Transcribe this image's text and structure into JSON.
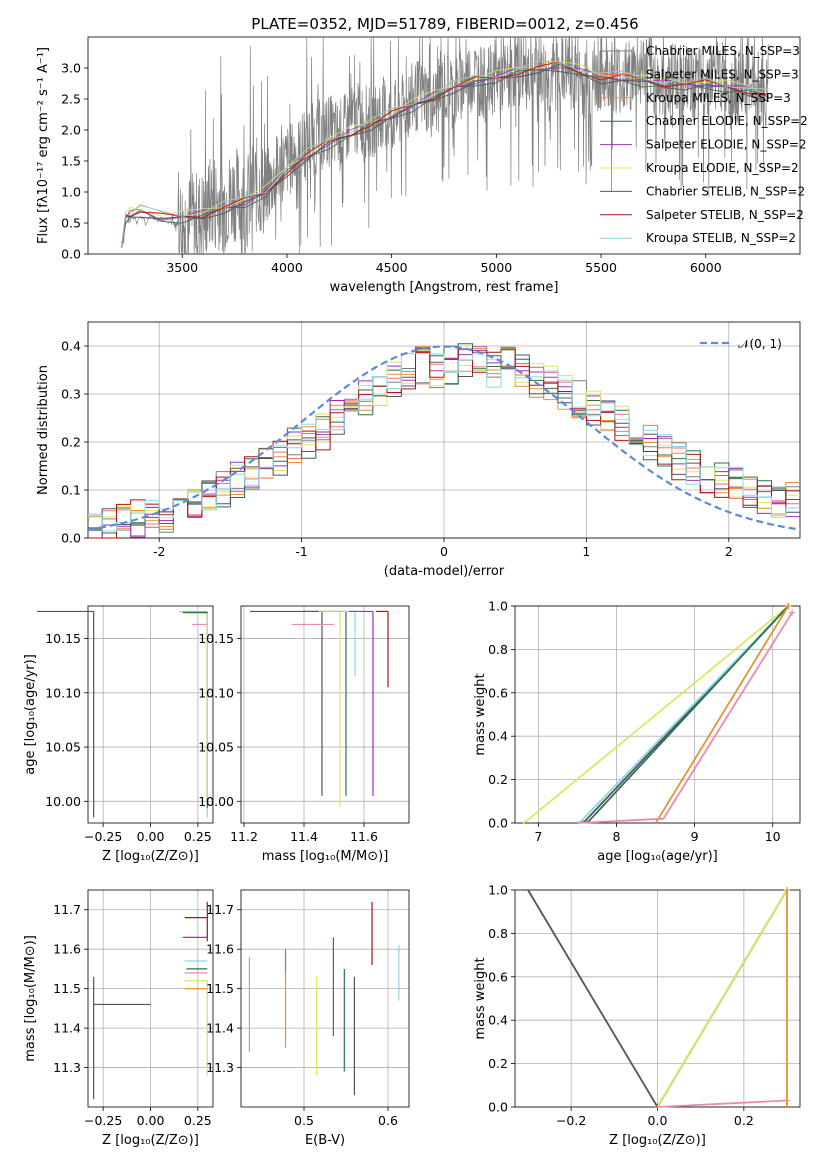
{
  "figure": {
    "title": "PLATE=0352, MJD=51789, FIBERID=0012, z=0.456"
  },
  "chart_data": [
    {
      "id": "spectrum",
      "type": "line",
      "xlabel": "wavelength [Angstrom, rest frame]",
      "ylabel": "Flux [fλ10⁻¹⁷ erg cm⁻² s⁻¹ A⁻¹]",
      "xlim": [
        3050,
        6450
      ],
      "ylim": [
        0,
        3.5
      ],
      "xticks": [
        3500,
        4000,
        4500,
        5000,
        5500,
        6000
      ],
      "yticks": [
        0.0,
        0.5,
        1.0,
        1.5,
        2.0,
        2.5,
        3.0
      ],
      "grid": false,
      "legend_position": "top-right",
      "observed": {
        "color": "#808080",
        "x": [
          3210,
          3230,
          3250,
          3300,
          3350,
          3400,
          3450,
          3500,
          3550,
          3600,
          3650,
          3700,
          3750,
          3800,
          3850,
          3900,
          3950,
          4000,
          4050,
          4100,
          4150,
          4200,
          4250,
          4300,
          4350,
          4400,
          4450,
          4500,
          4550,
          4600,
          4650,
          4700,
          4750,
          4800,
          4850,
          4900,
          4950,
          5000,
          5050,
          5100,
          5150,
          5200,
          5250,
          5300,
          5350,
          5400,
          5450,
          5500,
          5550,
          5600,
          5650,
          5700,
          5750,
          5800,
          5850,
          5900,
          5950,
          6000,
          6050,
          6100,
          6150,
          6200,
          6250,
          6300
        ],
        "y": [
          0.1,
          0.5,
          0.55,
          0.6,
          0.6,
          0.55,
          0.5,
          0.5,
          0.55,
          0.6,
          0.9,
          0.8,
          1.0,
          0.8,
          1.1,
          1.0,
          1.3,
          1.5,
          1.6,
          1.8,
          1.9,
          2.0,
          1.9,
          2.1,
          2.2,
          2.1,
          2.3,
          2.2,
          2.3,
          2.5,
          2.6,
          2.4,
          2.7,
          2.6,
          2.8,
          2.9,
          2.7,
          2.9,
          2.8,
          3.0,
          2.9,
          3.0,
          2.8,
          2.9,
          3.0,
          2.8,
          2.7,
          2.9,
          2.9,
          2.8,
          2.9,
          3.0,
          2.8,
          2.7,
          2.9,
          2.8,
          2.7,
          2.8,
          2.9,
          2.8,
          2.7,
          2.8,
          2.7,
          2.6
        ]
      },
      "series": [
        {
          "name": "Chabrier MILES, N_SSP=3",
          "color": "#7f7f7f"
        },
        {
          "name": "Salpeter MILES, N_SSP=3",
          "color": "#f07070"
        },
        {
          "name": "Kroupa MILES, N_SSP=3",
          "color": "#e8922e"
        },
        {
          "name": "Chabrier ELODIE, N_SSP=2",
          "color": "#2f6f4f"
        },
        {
          "name": "Salpeter ELODIE, N_SSP=2",
          "color": "#9b30c0"
        },
        {
          "name": "Kroupa ELODIE, N_SSP=2",
          "color": "#d8e860"
        },
        {
          "name": "Chabrier STELIB, N_SSP=2",
          "color": "#555555"
        },
        {
          "name": "Salpeter STELIB, N_SSP=2",
          "color": "#b01010"
        },
        {
          "name": "Kroupa STELIB, N_SSP=2",
          "color": "#88d8e8"
        }
      ],
      "model": {
        "x": [
          3210,
          3230,
          3250,
          3300,
          3400,
          3500,
          3600,
          3700,
          3800,
          3900,
          4000,
          4100,
          4200,
          4300,
          4400,
          4500,
          4600,
          4700,
          4800,
          4900,
          5000,
          5100,
          5200,
          5300,
          5400,
          5500,
          5600,
          5700,
          5800,
          5900,
          6000,
          6100,
          6200,
          6300
        ],
        "y": [
          0.1,
          0.6,
          0.65,
          0.7,
          0.6,
          0.6,
          0.65,
          0.75,
          0.85,
          1.0,
          1.35,
          1.6,
          1.8,
          1.95,
          2.1,
          2.25,
          2.4,
          2.55,
          2.7,
          2.8,
          2.85,
          2.95,
          3.0,
          3.05,
          2.95,
          2.85,
          2.85,
          2.8,
          2.75,
          2.75,
          2.75,
          2.7,
          2.65,
          2.55
        ]
      }
    },
    {
      "id": "residuals",
      "type": "line",
      "xlabel": "(data-model)/error",
      "ylabel": "Normed distribution",
      "xlim": [
        -2.5,
        2.5
      ],
      "ylim": [
        0,
        0.45
      ],
      "xticks": [
        -2,
        -1,
        0,
        1,
        2
      ],
      "yticks": [
        0.0,
        0.1,
        0.2,
        0.3,
        0.4
      ],
      "grid": true,
      "legend_position": "top-right",
      "reference": {
        "name": "𝒩(0, 1)",
        "mean": 0,
        "sigma": 1,
        "color": "#5b8bd8"
      },
      "histogram": {
        "bins_x": [
          -2.5,
          -2.4,
          -2.3,
          -2.2,
          -2.1,
          -2.0,
          -1.9,
          -1.8,
          -1.7,
          -1.6,
          -1.5,
          -1.4,
          -1.3,
          -1.2,
          -1.1,
          -1.0,
          -0.9,
          -0.8,
          -0.7,
          -0.6,
          -0.5,
          -0.4,
          -0.3,
          -0.2,
          -0.1,
          0.0,
          0.1,
          0.2,
          0.3,
          0.4,
          0.5,
          0.6,
          0.7,
          0.8,
          0.9,
          1.0,
          1.1,
          1.2,
          1.3,
          1.4,
          1.5,
          1.6,
          1.7,
          1.8,
          1.9,
          2.0,
          2.1,
          2.2,
          2.3,
          2.4
        ],
        "heights": [
          0.02,
          0.03,
          0.04,
          0.04,
          0.05,
          0.05,
          0.06,
          0.07,
          0.09,
          0.1,
          0.12,
          0.13,
          0.15,
          0.17,
          0.19,
          0.2,
          0.22,
          0.25,
          0.27,
          0.29,
          0.31,
          0.33,
          0.35,
          0.36,
          0.35,
          0.36,
          0.37,
          0.36,
          0.35,
          0.36,
          0.35,
          0.33,
          0.32,
          0.3,
          0.29,
          0.27,
          0.25,
          0.24,
          0.22,
          0.2,
          0.18,
          0.16,
          0.15,
          0.13,
          0.12,
          0.11,
          0.1,
          0.09,
          0.08,
          0.08
        ]
      }
    },
    {
      "id": "age_vs_Z",
      "type": "scatter",
      "xlabel": "Z [log₁₀(Z/Z⊙)]",
      "ylabel": "age  [log₁₀(age/yr)]",
      "xlim": [
        -0.33,
        0.33
      ],
      "ylim": [
        9.98,
        10.18
      ],
      "xticks": [
        -0.25,
        0.0,
        0.25
      ],
      "xtick_labels": [
        "−0.25",
        "0.00",
        "0.25"
      ],
      "yticks": [
        10.0,
        10.05,
        10.1,
        10.15
      ],
      "ytick_labels": [
        "10.00",
        "10.05",
        "10.10",
        "10.15"
      ],
      "grid": true,
      "points": [
        {
          "x": -0.3,
          "y": 10.175,
          "xerr": [
            0.3,
            0.0
          ],
          "yerr": [
            0.19,
            0.0
          ],
          "color": "#555555"
        },
        {
          "x": 0.3,
          "y": 10.175,
          "xerr": [
            0.15,
            0.0
          ],
          "yerr": [
            0.19,
            0.0
          ],
          "color": "#88d8e8"
        },
        {
          "x": 0.3,
          "y": 10.174,
          "xerr": [
            0.13,
            0.0
          ],
          "yerr": [
            0.18,
            0.0
          ],
          "color": "#2f6f4f"
        },
        {
          "x": 0.3,
          "y": 10.173,
          "xerr": [
            0.12,
            0.0
          ],
          "yerr": [
            0.17,
            0.0
          ],
          "color": "#d8e860"
        },
        {
          "x": 0.3,
          "y": 10.163,
          "xerr": [
            0.08,
            0.0
          ],
          "yerr": [
            0.0,
            0.0
          ],
          "color": "#e88ab8"
        }
      ]
    },
    {
      "id": "age_vs_mass",
      "type": "scatter",
      "xlabel": "mass [log₁₀(M/M⊙)]",
      "ylabel": "",
      "xlim": [
        11.19,
        11.75
      ],
      "ylim": [
        9.98,
        10.18
      ],
      "xticks": [
        11.2,
        11.4,
        11.6
      ],
      "xtick_labels": [
        "11.2",
        "11.4",
        "11.6"
      ],
      "yticks": [
        10.0,
        10.05,
        10.1,
        10.15
      ],
      "ytick_labels": [
        "10.00",
        "10.05",
        "10.10",
        "10.15"
      ],
      "grid": true,
      "points": [
        {
          "x": 11.46,
          "y": 10.175,
          "xerr": [
            0.24,
            0.0
          ],
          "yerr": [
            0.17,
            0.0
          ],
          "color": "#555555"
        },
        {
          "x": 11.52,
          "y": 10.175,
          "xerr": [
            0.1,
            0.0
          ],
          "yerr": [
            0.18,
            0.0
          ],
          "color": "#d8e860"
        },
        {
          "x": 11.54,
          "y": 10.175,
          "xerr": [
            0.14,
            0.0
          ],
          "yerr": [
            0.17,
            0.0
          ],
          "color": "#2f6f4f"
        },
        {
          "x": 11.57,
          "y": 10.175,
          "xerr": [
            0.12,
            0.0
          ],
          "yerr": [
            0.06,
            0.0
          ],
          "color": "#88d8e8"
        },
        {
          "x": 11.63,
          "y": 10.175,
          "xerr": [
            0.08,
            0.0
          ],
          "yerr": [
            0.17,
            0.0
          ],
          "color": "#9b30c0"
        },
        {
          "x": 11.68,
          "y": 10.175,
          "xerr": [
            0.04,
            0.0
          ],
          "yerr": [
            0.07,
            0.0
          ],
          "color": "#b01010"
        },
        {
          "x": 11.5,
          "y": 10.163,
          "xerr": [
            0.14,
            0.0
          ],
          "yerr": [
            0.0,
            0.0
          ],
          "color": "#e88ab8"
        }
      ]
    },
    {
      "id": "cumulative_mass_age",
      "type": "line",
      "xlabel": "age  [log₁₀(age/yr)]",
      "ylabel": "mass weight",
      "xlim": [
        6.7,
        10.35
      ],
      "ylim": [
        0,
        1
      ],
      "xticks": [
        7,
        8,
        9,
        10
      ],
      "yticks": [
        0.0,
        0.2,
        0.4,
        0.6,
        0.8,
        1.0
      ],
      "grid": true,
      "series": [
        {
          "name": "Kroupa ELODIE",
          "color": "#d8e860",
          "x": [
            6.8,
            6.85,
            10.2
          ],
          "y": [
            0,
            0.01,
            1.0
          ]
        },
        {
          "name": "Chabrier STELIB",
          "color": "#555555",
          "x": [
            7.55,
            7.6,
            10.2
          ],
          "y": [
            0,
            0.01,
            1.0
          ]
        },
        {
          "name": "Kroupa STELIB",
          "color": "#88d8e8",
          "x": [
            7.5,
            7.55,
            10.2
          ],
          "y": [
            0,
            0.01,
            1.0
          ]
        },
        {
          "name": "Chabrier ELODIE",
          "color": "#2f6f4f",
          "x": [
            7.6,
            7.65,
            10.2
          ],
          "y": [
            0,
            0.01,
            1.0
          ]
        },
        {
          "name": "Kroupa MILES",
          "color": "#e8922e",
          "x": [
            8.5,
            8.52,
            10.2
          ],
          "y": [
            0,
            0.01,
            1.0
          ]
        },
        {
          "name": "Salpeter MILES",
          "color": "#e88ab8",
          "x": [
            7.5,
            8.6,
            10.25
          ],
          "y": [
            0,
            0.02,
            0.97
          ]
        }
      ]
    },
    {
      "id": "mass_vs_Z",
      "type": "scatter",
      "xlabel": "Z [log₁₀(Z/Z⊙)]",
      "ylabel": "mass [log₁₀(M/M⊙)]",
      "xlim": [
        -0.33,
        0.33
      ],
      "ylim": [
        11.2,
        11.75
      ],
      "xticks": [
        -0.25,
        0.0,
        0.25
      ],
      "xtick_labels": [
        "−0.25",
        "0.00",
        "0.25"
      ],
      "yticks": [
        11.3,
        11.4,
        11.5,
        11.6,
        11.7
      ],
      "ytick_labels": [
        "11.3",
        "11.4",
        "11.5",
        "11.6",
        "11.7"
      ],
      "grid": true,
      "points": [
        {
          "x": -0.3,
          "y": 11.46,
          "xerr": [
            0.0,
            0.3
          ],
          "yerr": [
            0.24,
            0.07
          ],
          "color": "#555555"
        },
        {
          "x": 0.3,
          "y": 11.68,
          "xerr": [
            0.12,
            0.0
          ],
          "yerr": [
            0.06,
            0.04
          ],
          "color": "#b01010"
        },
        {
          "x": 0.3,
          "y": 11.63,
          "xerr": [
            0.13,
            0.0
          ],
          "yerr": [
            0.0,
            0.0
          ],
          "color": "#9b30c0"
        },
        {
          "x": 0.3,
          "y": 11.57,
          "xerr": [
            0.12,
            0.0
          ],
          "yerr": [
            0.0,
            0.0
          ],
          "color": "#88d8e8"
        },
        {
          "x": 0.3,
          "y": 11.55,
          "xerr": [
            0.11,
            0.0
          ],
          "yerr": [
            0.0,
            0.0
          ],
          "color": "#2f6f4f"
        },
        {
          "x": 0.3,
          "y": 11.54,
          "xerr": [
            0.12,
            0.0
          ],
          "yerr": [
            0.0,
            0.0
          ],
          "color": "#e88ab8"
        },
        {
          "x": 0.3,
          "y": 11.52,
          "xerr": [
            0.12,
            0.0
          ],
          "yerr": [
            0.24,
            0.0
          ],
          "color": "#d8e860"
        },
        {
          "x": 0.3,
          "y": 11.5,
          "xerr": [
            0.12,
            0.0
          ],
          "yerr": [
            0.0,
            0.0
          ],
          "color": "#e8922e"
        }
      ]
    },
    {
      "id": "mass_vs_EBV",
      "type": "scatter",
      "xlabel": "E(B-V)",
      "ylabel": "",
      "xlim": [
        0.425,
        0.625
      ],
      "ylim": [
        11.2,
        11.75
      ],
      "xticks": [
        0.5,
        0.6
      ],
      "xtick_labels": [
        "0.5",
        "0.6"
      ],
      "yticks": [
        11.3,
        11.4,
        11.5,
        11.6,
        11.7
      ],
      "ytick_labels": [
        "11.3",
        "11.4",
        "11.5",
        "11.6",
        "11.7"
      ],
      "grid": true,
      "points": [
        {
          "x": 0.435,
          "y": 11.46,
          "xerr": [
            0,
            0
          ],
          "yerr": [
            0.12,
            0.12
          ],
          "color": "#e88ab8"
        },
        {
          "x": 0.478,
          "y": 11.47,
          "xerr": [
            0,
            0
          ],
          "yerr": [
            0.12,
            0.12
          ],
          "color": "#e8922e"
        },
        {
          "x": 0.478,
          "y": 11.56,
          "xerr": [
            0,
            0
          ],
          "yerr": [
            0.02,
            0.04
          ],
          "color": "#5b8bd8"
        },
        {
          "x": 0.515,
          "y": 11.4,
          "xerr": [
            0,
            0
          ],
          "yerr": [
            0.12,
            0.13
          ],
          "color": "#d8e860"
        },
        {
          "x": 0.535,
          "y": 11.51,
          "xerr": [
            0,
            0
          ],
          "yerr": [
            0.13,
            0.12
          ],
          "color": "#9b30c0"
        },
        {
          "x": 0.548,
          "y": 11.42,
          "xerr": [
            0,
            0
          ],
          "yerr": [
            0.13,
            0.13
          ],
          "color": "#2f6f4f"
        },
        {
          "x": 0.56,
          "y": 11.37,
          "xerr": [
            0,
            0
          ],
          "yerr": [
            0.14,
            0.16
          ],
          "color": "#555555"
        },
        {
          "x": 0.581,
          "y": 11.64,
          "xerr": [
            0,
            0
          ],
          "yerr": [
            0.08,
            0.08
          ],
          "color": "#b01010"
        },
        {
          "x": 0.613,
          "y": 11.54,
          "xerr": [
            0,
            0
          ],
          "yerr": [
            0.07,
            0.07
          ],
          "color": "#88d8e8"
        }
      ]
    },
    {
      "id": "cumulative_mass_Z",
      "type": "line",
      "xlabel": "Z [log₁₀(Z/Z⊙)]",
      "ylabel": "mass weight",
      "xlim": [
        -0.33,
        0.33
      ],
      "ylim": [
        0,
        1
      ],
      "xticks": [
        -0.2,
        0.0,
        0.2
      ],
      "xtick_labels": [
        "−0.2",
        "0.0",
        "0.2"
      ],
      "yticks": [
        0.0,
        0.2,
        0.4,
        0.6,
        0.8,
        1.0
      ],
      "grid": true,
      "series": [
        {
          "name": "Chabrier STELIB",
          "color": "#555555",
          "x": [
            -0.3,
            0.0
          ],
          "y": [
            1.0,
            0.0
          ]
        },
        {
          "name": "Kroupa STELIB",
          "color": "#88d8e8",
          "x": [
            0.0,
            0.3
          ],
          "y": [
            0.0,
            1.0
          ]
        },
        {
          "name": "Chabrier ELODIE",
          "color": "#2f6f4f",
          "x": [
            0.0,
            0.3
          ],
          "y": [
            0.0,
            1.0
          ]
        },
        {
          "name": "Kroupa ELODIE",
          "color": "#d8e860",
          "x": [
            0.0,
            0.3
          ],
          "y": [
            0.0,
            1.0
          ]
        },
        {
          "name": "Salpeter MILES",
          "color": "#e88ab8",
          "x": [
            0.0,
            0.3
          ],
          "y": [
            0.0,
            0.03
          ]
        },
        {
          "name": "Kroupa MILES",
          "color": "#e8922e",
          "x": [
            0.3,
            0.3
          ],
          "y": [
            0.0,
            1.0
          ]
        }
      ]
    }
  ]
}
